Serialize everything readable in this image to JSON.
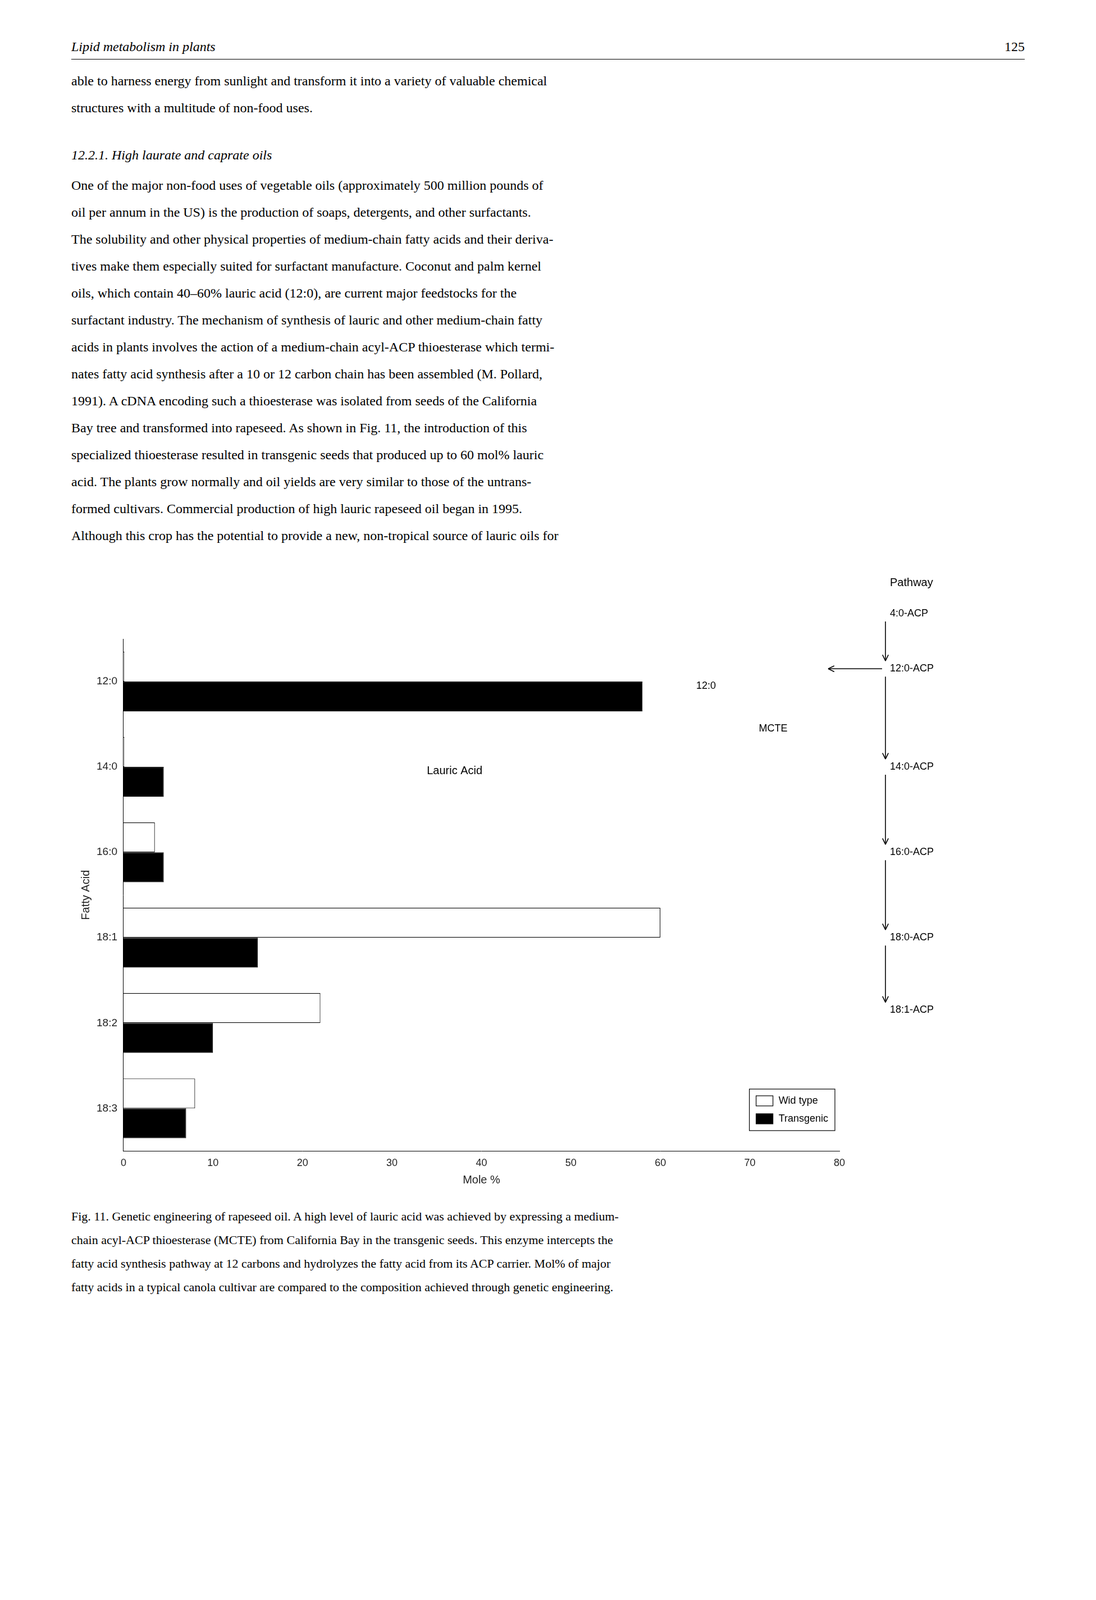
{
  "header": "Lipid metabolism in plants",
  "page_number": "125",
  "body_lines": [
    "able to harness energy from sunlight and transform it into a variety of valuable chemical",
    "structures with a multitude of non-food uses."
  ],
  "section_title": "12.2.1. High laurate and caprate oils",
  "paragraph_lines": [
    "One of the major non-food uses of vegetable oils (approximately 500 million pounds of",
    "oil per annum in the US) is the production of soaps, detergents, and other surfactants.",
    "The solubility and other physical properties of medium-chain fatty acids and their deriva-",
    "tives make them especially suited for surfactant manufacture. Coconut and palm kernel",
    "oils, which contain 40–60% lauric acid (12:0), are current major feedstocks for the",
    "surfactant industry. The mechanism of synthesis of lauric and other medium-chain fatty",
    "acids in plants involves the action of a medium-chain acyl-ACP thioesterase which termi-",
    "nates fatty acid synthesis after a 10 or 12 carbon chain has been assembled (M. Pollard,",
    "1991). A cDNA encoding such a thioesterase was isolated from seeds of the California",
    "Bay tree and transformed into rapeseed. As shown in Fig. 11, the introduction of this",
    "specialized thioesterase resulted in transgenic seeds that produced up to 60 mol% lauric",
    "acid. The plants grow normally and oil yields are very similar to those of the untrans-",
    "formed cultivars. Commercial production of high lauric rapeseed oil began in 1995.",
    "Although this crop has the potential to provide a new, non-tropical source of lauric oils for"
  ],
  "caption_lines": [
    "Fig. 11. Genetic engineering of rapeseed oil. A high level of lauric acid was achieved by expressing a medium-",
    "chain acyl-ACP thioesterase (MCTE) from California Bay in the transgenic seeds. This enzyme intercepts the",
    "fatty acid synthesis pathway at 12 carbons and hydrolyzes the fatty acid from its ACP carrier. Mol% of major",
    "fatty acids in a typical canola cultivar are compared to the composition achieved through genetic engineering."
  ],
  "diagram": {
    "title": "Pathway",
    "steps": [
      "4:0-ACP",
      "12:0-ACP",
      "14:0-ACP",
      "16:0-ACP",
      "18:0-ACP",
      "18:1-ACP"
    ]
  },
  "chart_data": {
    "type": "bar",
    "orientation": "horizontal",
    "categories": [
      "12:0",
      "14:0",
      "16:0",
      "18:1",
      "18:2",
      "18:3"
    ],
    "series": [
      {
        "name": "Wid type",
        "color": "white",
        "values": [
          0.1,
          0.1,
          3.5,
          60,
          22,
          8
        ]
      },
      {
        "name": "Transgenic",
        "color": "black",
        "values": [
          58,
          4.5,
          4.5,
          15,
          10,
          7
        ]
      }
    ],
    "xlabel": "Mole %",
    "ylabel": "Fatty Acid",
    "xlim": [
      0,
      80
    ],
    "xticks": [
      0,
      10,
      20,
      30,
      40,
      50,
      60,
      70,
      80
    ],
    "grid": false,
    "legend": "lower right",
    "annotations": [
      "Lauric Acid",
      "12:0",
      "MCTE"
    ]
  }
}
